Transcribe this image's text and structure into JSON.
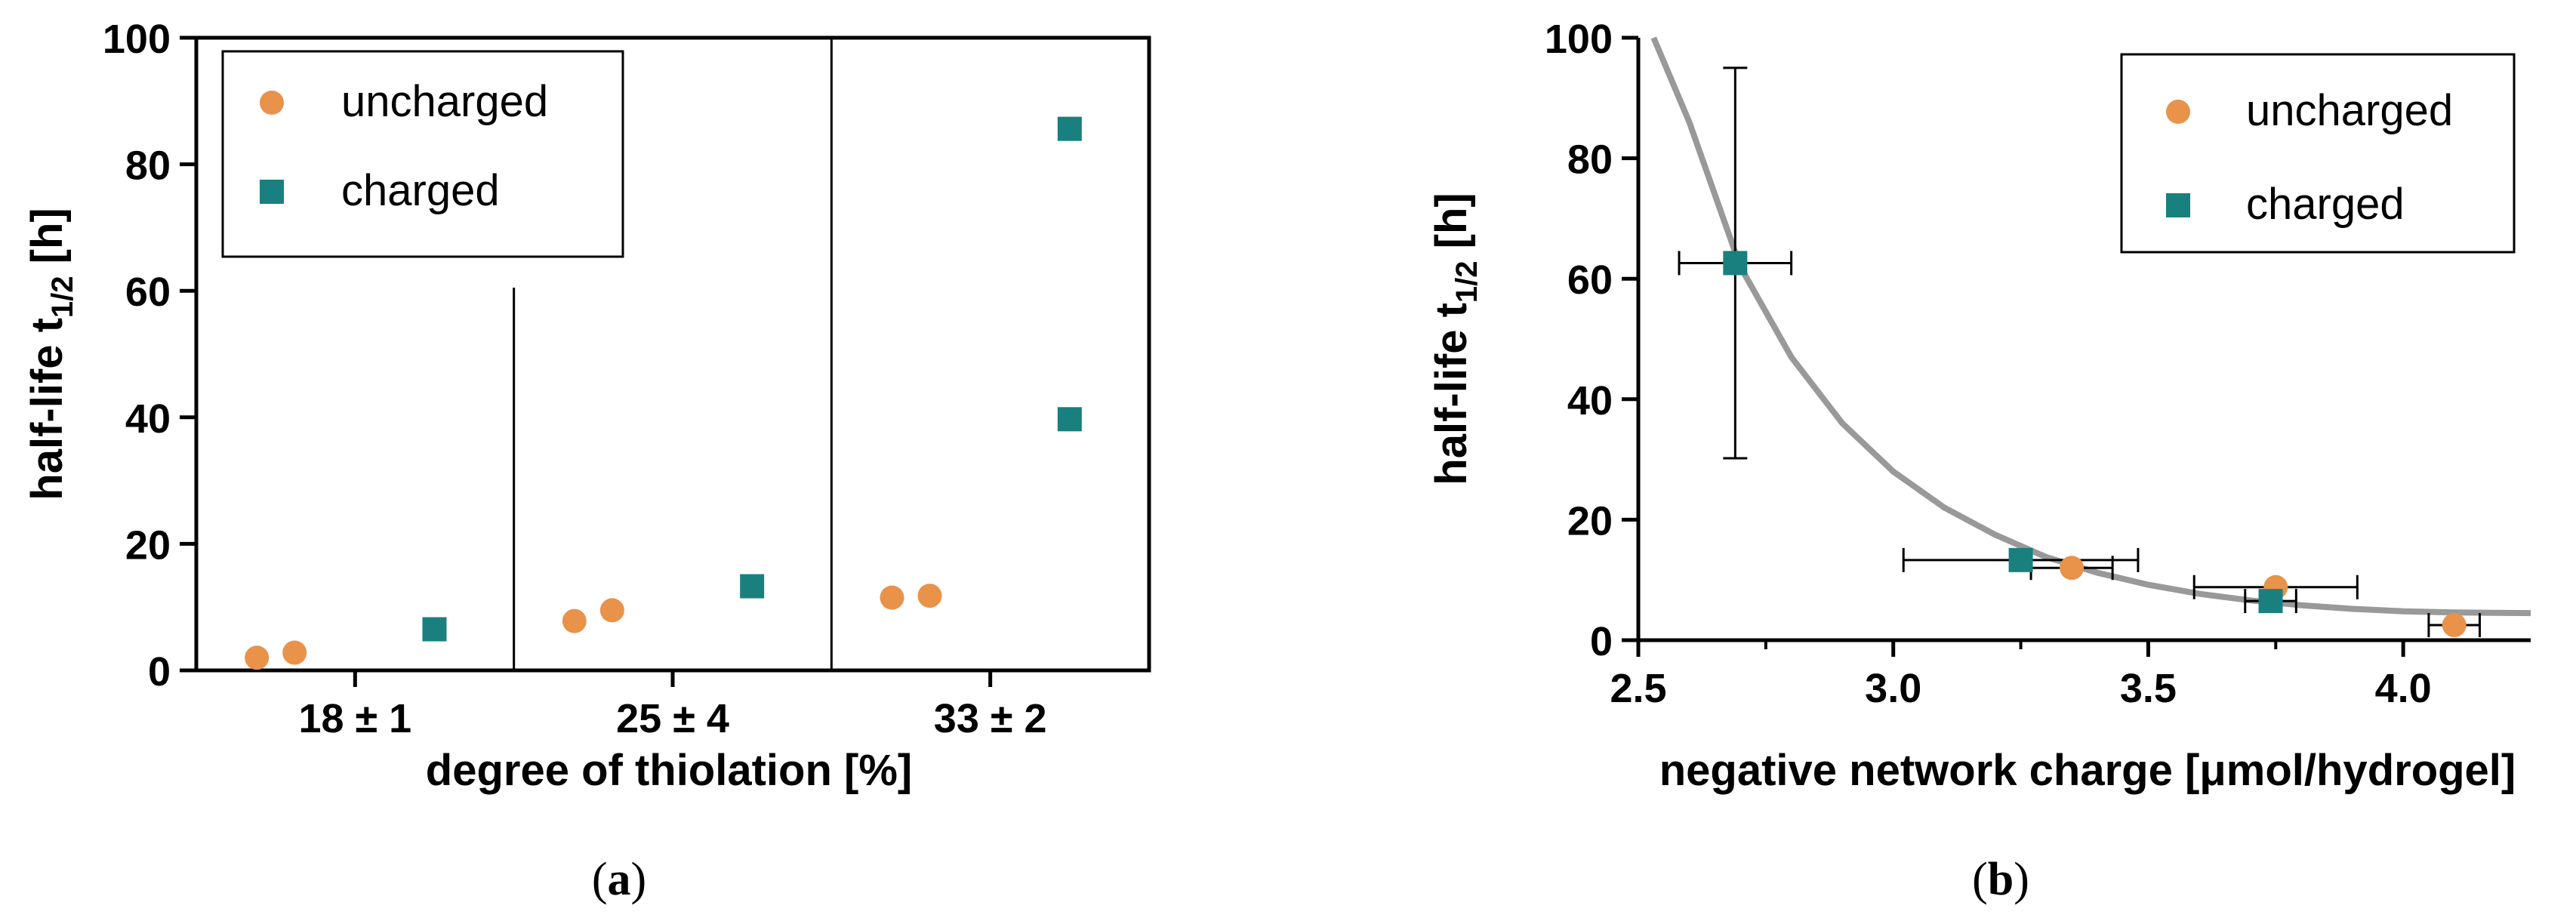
{
  "colors": {
    "uncharged": "#E8924A",
    "charged": "#1A7F7F",
    "fit": "#999999",
    "axis": "#000000"
  },
  "chart_data": [
    {
      "panel": "a",
      "type": "scatter",
      "caption": {
        "pre": "(",
        "letter": "a",
        "post": ")"
      },
      "xlabel": "degree of thiolation [%]",
      "ylabel": {
        "main": "half-life t",
        "sub": "1/2",
        "post": " [h]"
      },
      "ylim": [
        0,
        100
      ],
      "yticks": [
        0,
        20,
        40,
        60,
        80,
        100
      ],
      "categories": [
        "18 ± 1",
        "25 ± 4",
        "33 ± 2"
      ],
      "legend": {
        "position": "top-left",
        "entries": [
          "uncharged",
          "charged"
        ]
      },
      "series": [
        {
          "name": "uncharged",
          "marker": "circle",
          "points": [
            {
              "cat": 0,
              "y": 2.0
            },
            {
              "cat": 0,
              "y": 2.8
            },
            {
              "cat": 1,
              "y": 7.8
            },
            {
              "cat": 1,
              "y": 9.5
            },
            {
              "cat": 2,
              "y": 11.5
            },
            {
              "cat": 2,
              "y": 11.8
            }
          ]
        },
        {
          "name": "charged",
          "marker": "square",
          "points": [
            {
              "cat": 0,
              "y": 6.5
            },
            {
              "cat": 1,
              "y": 13.3
            },
            {
              "cat": 2,
              "y": 39.7
            },
            {
              "cat": 2,
              "y": 85.6
            }
          ]
        }
      ]
    },
    {
      "panel": "b",
      "type": "scatter",
      "caption": {
        "pre": "(",
        "letter": "b",
        "post": ")"
      },
      "xlabel": "negative network charge [μmol/hydrogel]",
      "ylabel": {
        "main": "half-life t",
        "sub": "1/2",
        "post": " [h]"
      },
      "xlim": [
        2.5,
        4.25
      ],
      "ylim": [
        0,
        100
      ],
      "xticks": [
        "2.5",
        "3.0",
        "3.5",
        "4.0"
      ],
      "yticks": [
        0,
        20,
        40,
        60,
        80,
        100
      ],
      "legend": {
        "position": "top-right",
        "entries": [
          "uncharged",
          "charged"
        ]
      },
      "fit": {
        "type": "exponential decay",
        "points": [
          [
            2.53,
            100
          ],
          [
            2.6,
            86
          ],
          [
            2.7,
            62
          ],
          [
            2.8,
            47
          ],
          [
            2.9,
            36
          ],
          [
            3.0,
            28
          ],
          [
            3.1,
            22
          ],
          [
            3.2,
            17.5
          ],
          [
            3.3,
            13.8
          ],
          [
            3.4,
            11.2
          ],
          [
            3.5,
            9.2
          ],
          [
            3.6,
            7.7
          ],
          [
            3.7,
            6.6
          ],
          [
            3.8,
            5.8
          ],
          [
            3.9,
            5.2
          ],
          [
            4.0,
            4.8
          ],
          [
            4.1,
            4.6
          ],
          [
            4.25,
            4.5
          ]
        ]
      },
      "series": [
        {
          "name": "uncharged",
          "marker": "circle",
          "points": [
            {
              "x": 3.35,
              "y": 12.0,
              "xerr": 0.08
            },
            {
              "x": 3.75,
              "y": 8.8,
              "xerr": 0.16
            },
            {
              "x": 4.1,
              "y": 2.5,
              "xerr": 0.05
            }
          ]
        },
        {
          "name": "charged",
          "marker": "square",
          "points": [
            {
              "x": 2.69,
              "y": 62.6,
              "xerr": 0.11,
              "yerr": 32.4
            },
            {
              "x": 3.25,
              "y": 13.3,
              "xerr": 0.23
            },
            {
              "x": 3.74,
              "y": 6.5,
              "xerr": 0.05
            }
          ]
        }
      ]
    }
  ]
}
